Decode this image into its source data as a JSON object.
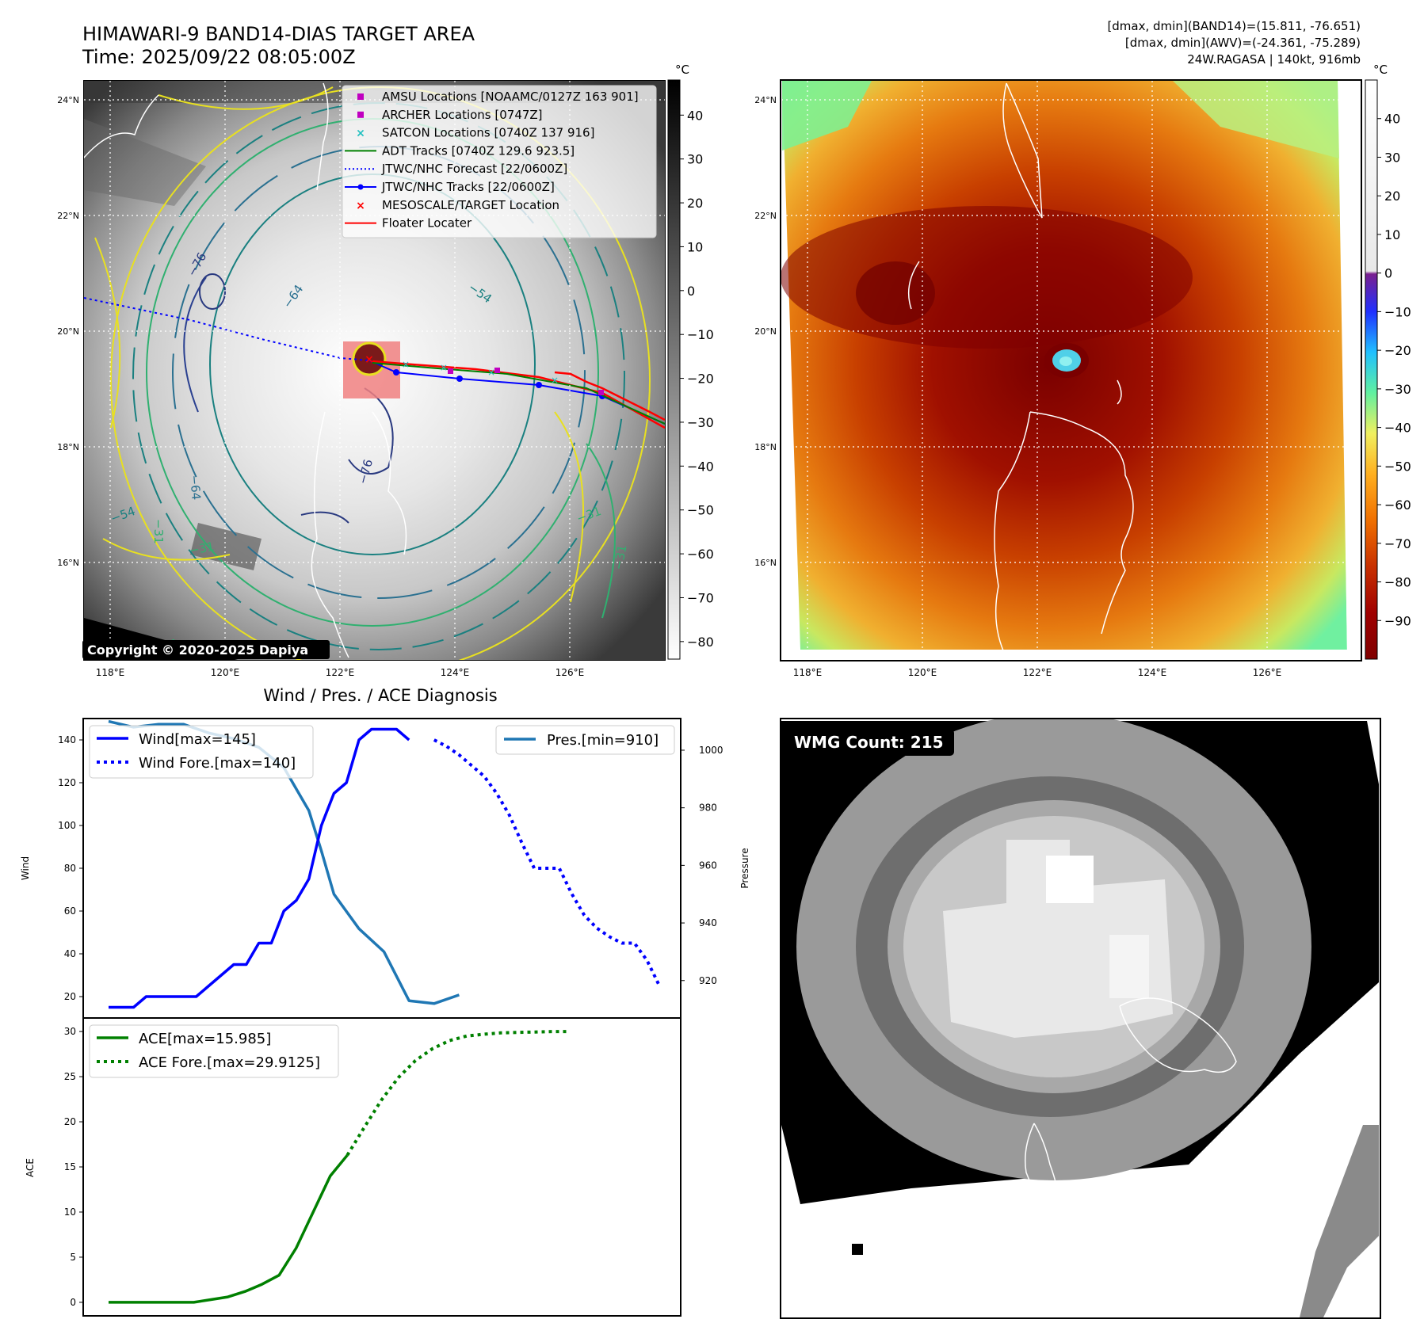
{
  "header": {
    "title_line1": "HIMAWARI-9 BAND14-DIAS TARGET AREA",
    "title_line2": "Time: 2025/09/22 08:05:00Z",
    "stats_line1": "[dmax, dmin](BAND14)=(15.811, -76.651)",
    "stats_line2": "[dmax, dmin](AWV)=(-24.361, -75.289)",
    "stats_line3": "24W.RAGASA | 140kt, 916mb"
  },
  "map_common": {
    "lat_labels": [
      "24°N",
      "22°N",
      "20°N",
      "18°N",
      "16°N"
    ],
    "lon_labels": [
      "118°E",
      "120°E",
      "122°E",
      "124°E",
      "126°E"
    ],
    "lat_values": [
      24,
      22,
      20,
      18,
      16
    ],
    "lon_values": [
      118,
      120,
      122,
      124,
      126
    ]
  },
  "left_map": {
    "colorbar_unit": "°C",
    "colorbar_ticks": [
      "40",
      "30",
      "20",
      "10",
      "0",
      "−10",
      "−20",
      "−30",
      "−40",
      "−50",
      "−60",
      "−70",
      "−80"
    ],
    "colorbar_values": [
      40,
      30,
      20,
      10,
      0,
      -10,
      -20,
      -30,
      -40,
      -50,
      -60,
      -70,
      -80
    ],
    "colorbar_range": [
      -84,
      48
    ],
    "contour_labels": [
      "−76",
      "−64",
      "−54",
      "−76",
      "−64",
      "−54",
      "−31",
      "−31",
      "−31",
      "−31",
      "−4"
    ],
    "copyright": "Copyright © 2020-2025 Dapiya",
    "legend": [
      {
        "label": "AMSU Locations [NOAAMC/0127Z 163 901]",
        "marker": "square",
        "color": "#c000c0"
      },
      {
        "label": "ARCHER Locations [0747Z]",
        "marker": "square",
        "color": "#c000c0"
      },
      {
        "label": "SATCON Locations [0740Z 137 916]",
        "marker": "x",
        "color": "#20c0c0"
      },
      {
        "label": "ADT Tracks [0740Z 129.6 923.5]",
        "marker": "line",
        "color": "#008000"
      },
      {
        "label": "JTWC/NHC Forecast [22/0600Z]",
        "marker": "dotted",
        "color": "#0000ff"
      },
      {
        "label": "JTWC/NHC Tracks [22/0600Z]",
        "marker": "line-dot",
        "color": "#0000ff"
      },
      {
        "label": "MESOSCALE/TARGET Location",
        "marker": "x",
        "color": "#ff0000"
      },
      {
        "label": "Floater Locater",
        "marker": "line",
        "color": "#ff0000"
      }
    ]
  },
  "right_map": {
    "colorbar_unit": "°C",
    "colorbar_ticks": [
      "40",
      "30",
      "20",
      "10",
      "0",
      "−10",
      "−20",
      "−30",
      "−40",
      "−50",
      "−60",
      "−70",
      "−80",
      "−90"
    ],
    "colorbar_values": [
      40,
      30,
      20,
      10,
      0,
      -10,
      -20,
      -30,
      -40,
      -50,
      -60,
      -70,
      -80,
      -90
    ],
    "colorbar_range": [
      -100,
      50
    ]
  },
  "colors": {
    "wind": "#0000ff",
    "pressure": "#1f77b4",
    "ace": "#008000"
  },
  "chart_data": [
    {
      "type": "line",
      "title": "Wind / Pres. / ACE Diagnosis",
      "ylabel": "Wind",
      "y2label": "Pressure",
      "ylim": [
        10,
        150
      ],
      "y2lim": [
        907,
        1011
      ],
      "yticks": [
        20,
        40,
        60,
        80,
        100,
        120,
        140
      ],
      "y2ticks": [
        920,
        940,
        960,
        980,
        1000
      ],
      "series": [
        {
          "name": "Wind[max=145]",
          "axis": "left",
          "style": "solid",
          "x": [
            0,
            1,
            2,
            3,
            4,
            5,
            6,
            7,
            8,
            9,
            10,
            11,
            12,
            13,
            14,
            15,
            16,
            17,
            18,
            19,
            20,
            21,
            22,
            23,
            24,
            25,
            26
          ],
          "values": [
            15,
            15,
            15,
            20,
            20,
            20,
            20,
            20,
            25,
            30,
            35,
            35,
            45,
            45,
            60,
            65,
            75,
            100,
            115,
            120,
            140,
            145,
            145,
            145,
            140,
            null,
            null
          ]
        },
        {
          "name": "Wind Fore.[max=140]",
          "axis": "left",
          "style": "dotted",
          "x": [
            26,
            27,
            28,
            29,
            30,
            31,
            32,
            33,
            34,
            35,
            36,
            37,
            38,
            39,
            40,
            41,
            42,
            43,
            44
          ],
          "values": [
            140,
            137,
            133,
            128,
            123,
            115,
            105,
            92,
            80,
            80,
            80,
            68,
            58,
            52,
            48,
            45,
            45,
            37,
            25
          ]
        },
        {
          "name": "Pres.[min=910]",
          "axis": "right",
          "style": "solid",
          "x": [
            0,
            2,
            4,
            6,
            8,
            10,
            12,
            14,
            16,
            17,
            18,
            20,
            22,
            24,
            26,
            28
          ],
          "values": [
            1010,
            1008,
            1009,
            1009,
            1006,
            1004,
            1001,
            994,
            979,
            965,
            950,
            938,
            930,
            913,
            912,
            915
          ]
        }
      ]
    },
    {
      "type": "line",
      "ylabel": "ACE",
      "ylim": [
        -1.5,
        31.5
      ],
      "yticks": [
        0,
        5,
        10,
        15,
        20,
        25,
        30
      ],
      "series": [
        {
          "name": "ACE[max=15.985]",
          "style": "solid",
          "x": [
            0,
            2,
            4,
            6,
            8,
            10,
            12,
            14,
            16,
            17,
            18,
            20,
            22,
            24,
            26,
            28
          ],
          "values": [
            0,
            0,
            0,
            0,
            0,
            0,
            0.3,
            0.6,
            1.2,
            1.6,
            2,
            3,
            6,
            10,
            14,
            16.3
          ]
        },
        {
          "name": "ACE Fore.[max=29.9125]",
          "style": "dotted",
          "x": [
            28,
            30,
            32,
            34,
            36,
            38,
            40,
            42,
            44,
            46,
            48,
            50,
            52,
            54
          ],
          "values": [
            16.3,
            19.4,
            22.4,
            24.9,
            26.8,
            28.1,
            29,
            29.5,
            29.7,
            29.85,
            29.9,
            29.95,
            30,
            30
          ]
        }
      ]
    }
  ],
  "wmg": {
    "count_label": "WMG Count: 215"
  }
}
